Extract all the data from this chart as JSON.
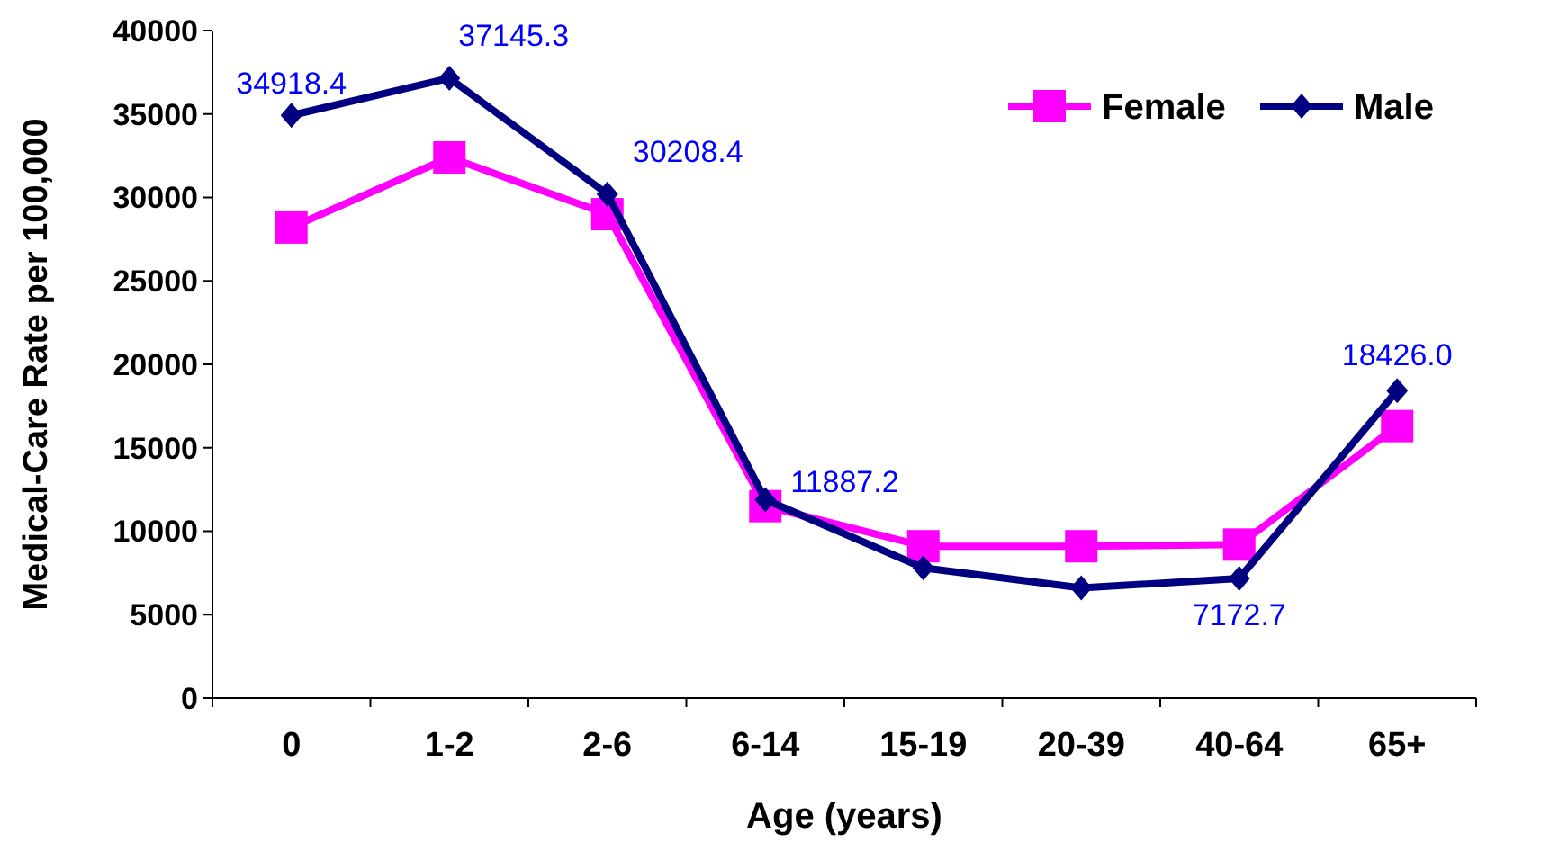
{
  "chart_data": {
    "type": "line",
    "xlabel": "Age (years)",
    "ylabel": "Medical-Care Rate per 100,000",
    "categories": [
      "0",
      "1-2",
      "2-6",
      "6-14",
      "15-19",
      "20-39",
      "40-64",
      "65+"
    ],
    "series": [
      {
        "name": "Female",
        "color": "#ff00ff",
        "marker": "square",
        "values": [
          28200,
          32400,
          29000,
          11500,
          9100,
          9100,
          9200,
          16300
        ]
      },
      {
        "name": "Male",
        "color": "#000080",
        "marker": "diamond",
        "values": [
          34918.4,
          37145.3,
          30208.4,
          11887.2,
          7800,
          6600,
          7172.7,
          18426.0
        ],
        "value_labels": [
          "34918.4",
          "37145.3",
          "30208.4",
          "11887.2",
          null,
          null,
          "7172.7",
          "18426.0"
        ]
      }
    ],
    "ylim": [
      0,
      40000
    ],
    "yticks": [
      0,
      5000,
      10000,
      15000,
      20000,
      25000,
      30000,
      35000,
      40000
    ],
    "grid": false,
    "legend": "top right",
    "line_style": "solid"
  }
}
